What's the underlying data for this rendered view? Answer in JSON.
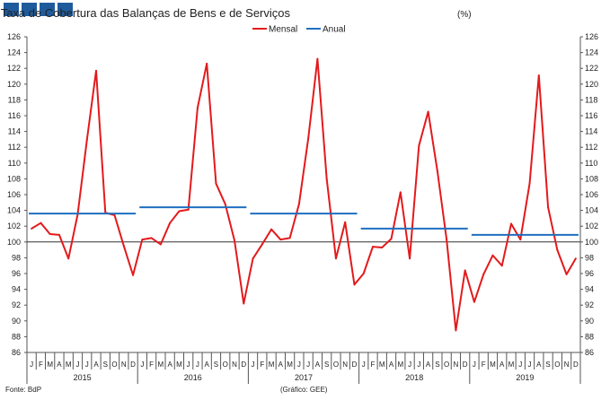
{
  "logo": {
    "name": "logo-squares"
  },
  "chart_data": {
    "type": "line",
    "title": "Taxa de Cobertura das Balanças de Bens e de Serviços",
    "title_unit": "(%)",
    "source": "Fonte: BdP",
    "credit": "(Gráfico: GEE)",
    "ylim": [
      86,
      126
    ],
    "y_ticks": [
      86,
      88,
      90,
      92,
      94,
      96,
      98,
      100,
      102,
      104,
      106,
      108,
      110,
      112,
      114,
      116,
      118,
      120,
      122,
      124,
      126
    ],
    "reference_line": 100,
    "grid": false,
    "legend_position": "top-center",
    "month_labels": [
      "J",
      "F",
      "M",
      "A",
      "M",
      "J",
      "J",
      "A",
      "S",
      "O",
      "N",
      "D"
    ],
    "years": [
      "2015",
      "2016",
      "2017",
      "2018",
      "2019"
    ],
    "series": [
      {
        "name": "Mensal",
        "color": "#e31a1c",
        "values": [
          101.7,
          102.4,
          101.0,
          100.9,
          97.9,
          103.5,
          112.9,
          121.7,
          103.7,
          103.4,
          99.5,
          95.8,
          100.3,
          100.5,
          99.7,
          102.4,
          103.9,
          104.1,
          117.0,
          122.6,
          107.4,
          104.8,
          100.2,
          92.2,
          97.9,
          99.7,
          101.6,
          100.3,
          100.5,
          104.8,
          113.1,
          123.2,
          108.0,
          97.9,
          102.5,
          94.6,
          96.0,
          99.4,
          99.3,
          100.4,
          106.3,
          97.9,
          112.2,
          116.5,
          109.0,
          100.3,
          88.8,
          96.4,
          92.4,
          95.9,
          98.3,
          97.0,
          102.3,
          100.3,
          107.4,
          121.1,
          104.4,
          99.0,
          95.9,
          97.9
        ]
      },
      {
        "name": "Anual",
        "color": "#1f6fbf",
        "values": [
          103.6,
          104.4,
          103.6,
          101.7,
          100.9
        ]
      }
    ]
  }
}
